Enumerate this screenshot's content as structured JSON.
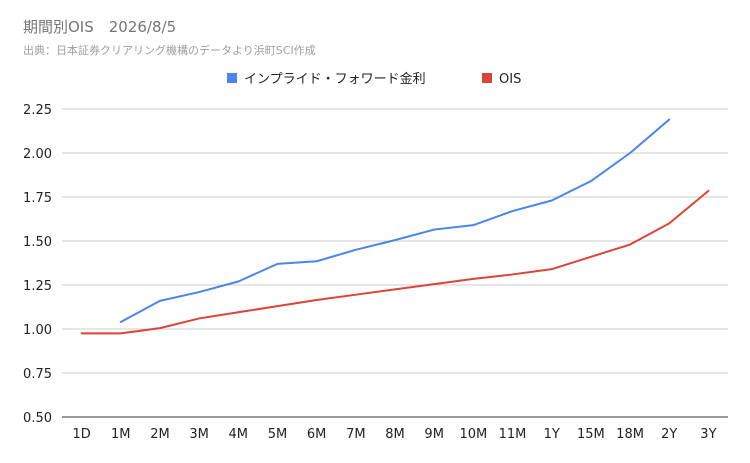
{
  "title": "期間別OIS　2026/8/5",
  "subtitle": "出典：日本証券クリアリング機構のデータより浜町SCI作成",
  "chart_data": {
    "type": "line",
    "categories": [
      "1D",
      "1M",
      "2M",
      "3M",
      "4M",
      "5M",
      "6M",
      "7M",
      "8M",
      "9M",
      "10M",
      "11M",
      "1Y",
      "15M",
      "18M",
      "2Y",
      "3Y"
    ],
    "series": [
      {
        "name": "インプライド・フォワード金利",
        "color": "#4a86e8",
        "values": [
          null,
          1.04,
          1.16,
          1.21,
          1.27,
          1.37,
          1.385,
          1.45,
          1.505,
          1.565,
          1.59,
          1.67,
          1.73,
          1.84,
          2.0,
          2.19,
          null
        ]
      },
      {
        "name": "OIS",
        "color": "#db4437",
        "values": [
          0.975,
          0.975,
          1.005,
          1.06,
          1.095,
          1.13,
          1.165,
          1.195,
          1.225,
          1.255,
          1.285,
          1.31,
          1.34,
          1.41,
          1.48,
          1.6,
          1.785
        ]
      }
    ],
    "ylim": [
      0.5,
      2.25
    ],
    "yticks": [
      "0.50",
      "0.75",
      "1.00",
      "1.25",
      "1.50",
      "1.75",
      "2.00",
      "2.25"
    ],
    "grid": true,
    "legend_position": "top-center"
  }
}
